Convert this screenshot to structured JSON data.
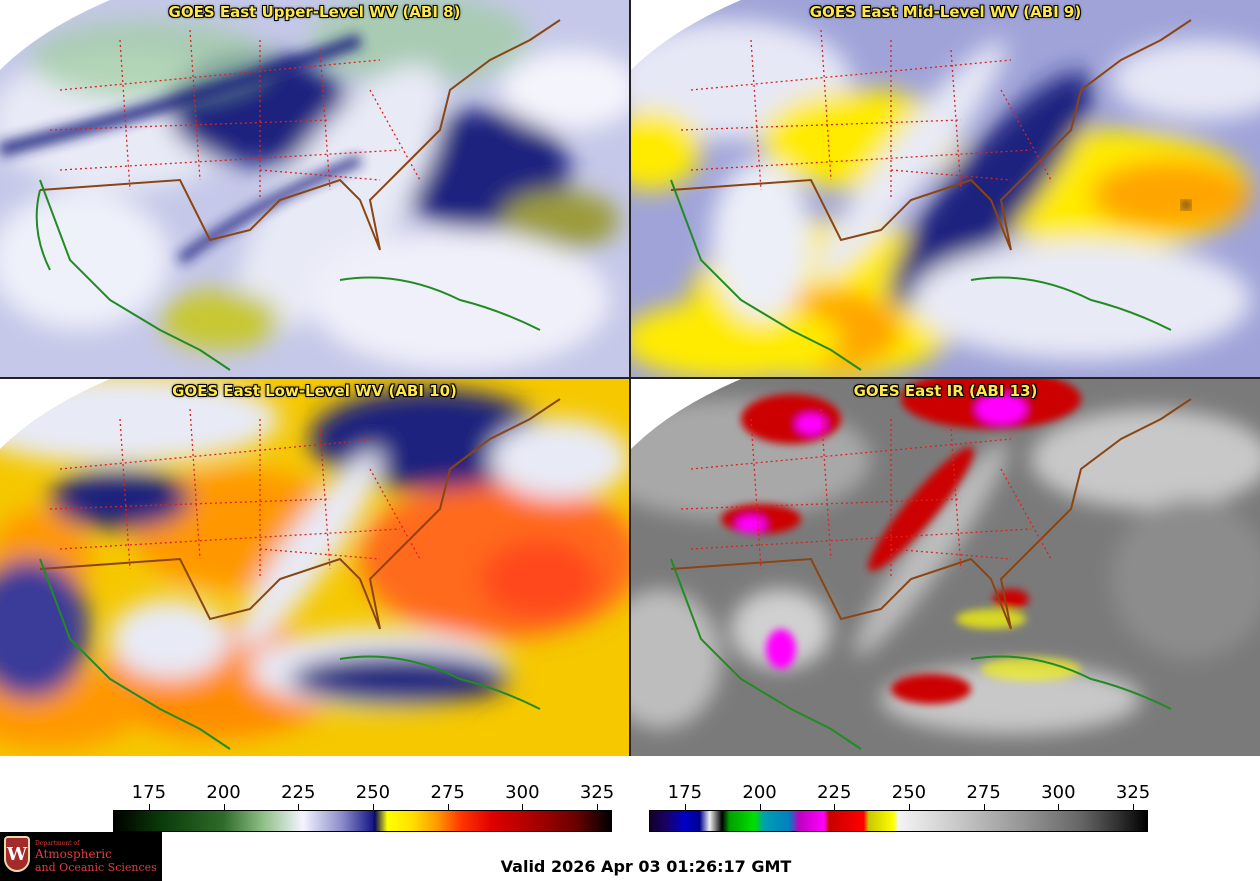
{
  "panels": {
    "top_left": {
      "title": "GOES East Upper-Level WV (ABI 8)",
      "palette": "wv_upper",
      "colors": {
        "base": "#1a237e",
        "mid": "#8c8cd0",
        "light": "#e8eaf6",
        "moist": "#9ccc9c",
        "dry": "#ffd700"
      }
    },
    "top_right": {
      "title": "GOES East Mid-Level WV (ABI 9)",
      "palette": "wv_mid",
      "colors": {
        "base": "#1a237e",
        "mid": "#9090d8",
        "light": "#eceff8",
        "dry": "#ffeb00",
        "drier": "#ffa500"
      }
    },
    "bottom_left": {
      "title": "GOES East Low-Level WV (ABI 10)",
      "palette": "wv_low",
      "colors": {
        "base": "#f5d000",
        "orange": "#ff9800",
        "red": "#ff4a1a",
        "blue": "#1a237e",
        "light": "#e8eaf6"
      }
    },
    "bottom_right": {
      "title": "GOES East IR (ABI 13)",
      "palette": "ir",
      "colors": {
        "base": "#6e6e6e",
        "cloud": "#dcdcdc",
        "cold": "#cc0000",
        "colder": "#ff00ff",
        "warm_edge": "#ffff00"
      }
    }
  },
  "map_overlays": {
    "state_borders_color": "#e02020",
    "coastline_color": "#8b4513",
    "international_color": "#228b22"
  },
  "colorbars": {
    "left": {
      "ticks": [
        "175",
        "200",
        "225",
        "250",
        "275",
        "300",
        "325"
      ],
      "min": 163,
      "max": 330
    },
    "right": {
      "ticks": [
        "175",
        "200",
        "225",
        "250",
        "275",
        "300",
        "325"
      ],
      "min": 163,
      "max": 330
    }
  },
  "logo": {
    "dept_label": "Department of",
    "name_line1": "Atmospheric",
    "name_line2": "and Oceanic Sciences",
    "shield_letter": "W"
  },
  "footer": {
    "valid_time": "Valid 2026 Apr 03 01:26:17 GMT"
  }
}
